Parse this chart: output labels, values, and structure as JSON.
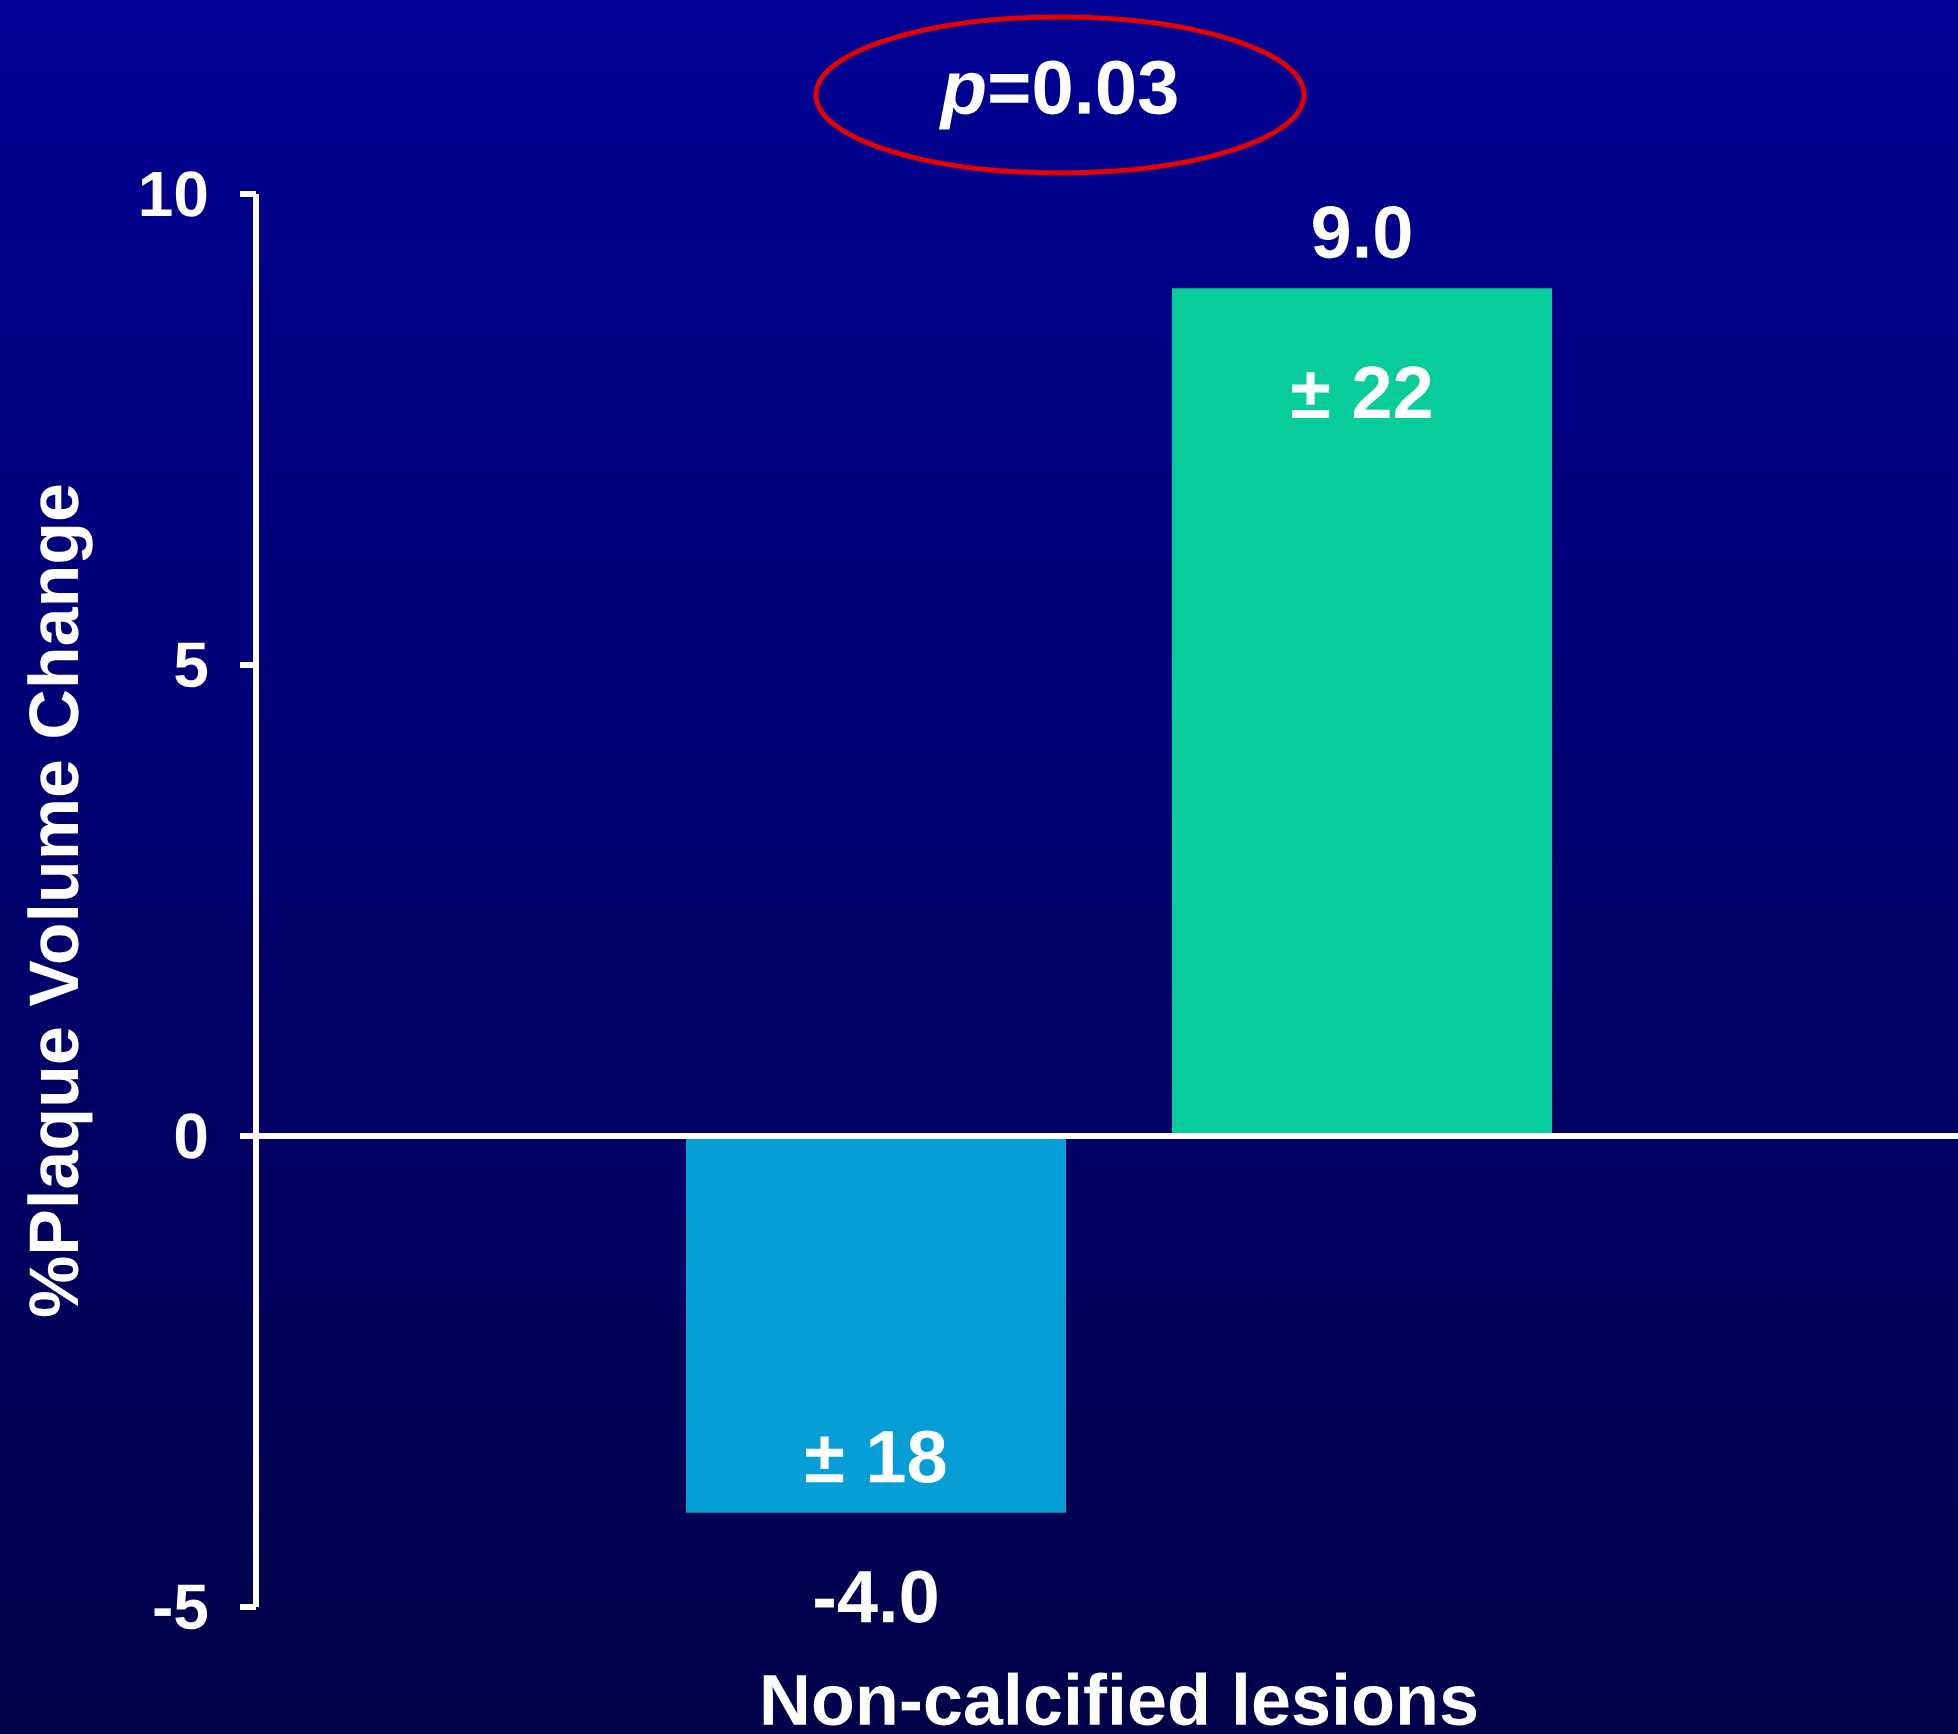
{
  "chart_data": {
    "type": "bar",
    "ylabel": "%Plaque Volume Change",
    "categories": [
      "Non-calcified lesions"
    ],
    "series": [
      {
        "color": "#069ed5",
        "values": [
          -4.0
        ],
        "value_labels": [
          "-4.0"
        ]
      },
      {
        "color": "#08cc9a",
        "values": [
          9.0
        ],
        "value_labels": [
          "9.0"
        ]
      }
    ],
    "ylim": [
      -5,
      10
    ],
    "yticks": [
      -5,
      0,
      5,
      10
    ],
    "annotations": [
      "*p*=0.03",
      "± 18",
      "± 22"
    ]
  }
}
